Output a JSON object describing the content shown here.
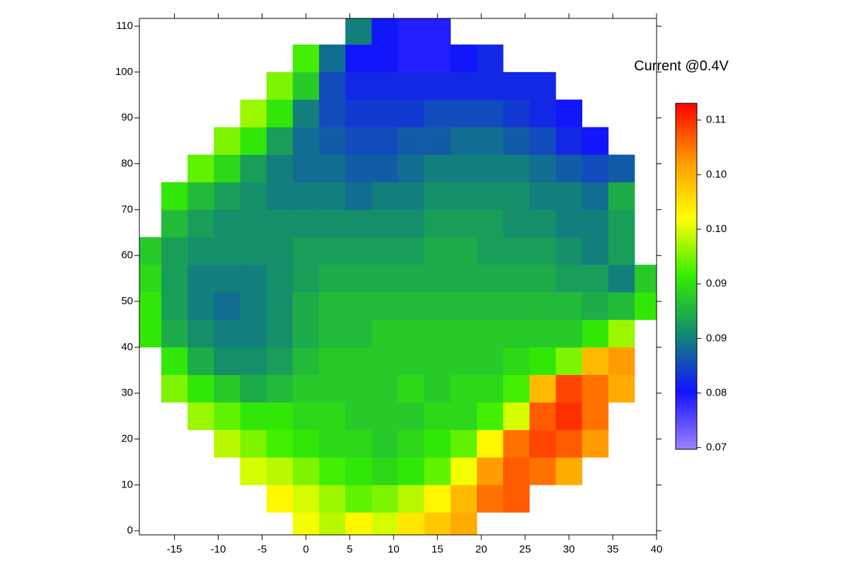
{
  "chart_data": {
    "type": "heatmap",
    "title": "Current @0.4V",
    "x": [
      -18,
      -15,
      -12,
      -9,
      -6,
      -3,
      0,
      3,
      6,
      9,
      12,
      15,
      18,
      21,
      24,
      27,
      30,
      33,
      36,
      39
    ],
    "y": [
      1,
      7,
      13,
      19,
      25,
      31,
      37,
      43,
      49,
      55,
      61,
      67,
      73,
      79,
      85,
      91,
      97,
      103,
      109
    ],
    "cell_size": [
      3,
      6
    ],
    "values": [
      [
        null,
        null,
        null,
        null,
        null,
        null,
        0.099,
        0.097,
        0.1,
        0.098,
        0.101,
        0.103,
        0.105,
        null,
        null,
        null,
        null,
        null,
        null,
        null
      ],
      [
        null,
        null,
        null,
        null,
        null,
        0.1,
        0.098,
        0.096,
        0.094,
        0.095,
        0.097,
        0.1,
        0.104,
        0.108,
        0.109,
        null,
        null,
        null,
        null,
        null
      ],
      [
        null,
        null,
        null,
        null,
        0.098,
        0.097,
        0.095,
        0.093,
        0.092,
        0.091,
        0.092,
        0.094,
        0.099,
        0.106,
        0.109,
        0.108,
        0.105,
        null,
        null,
        null
      ],
      [
        null,
        null,
        null,
        0.097,
        0.095,
        0.093,
        0.092,
        0.091,
        0.091,
        0.09,
        0.091,
        0.092,
        0.094,
        0.1,
        0.108,
        0.11,
        0.109,
        0.106,
        null,
        null
      ],
      [
        null,
        null,
        0.096,
        0.094,
        0.092,
        0.092,
        0.091,
        0.091,
        0.09,
        0.09,
        0.09,
        0.091,
        0.091,
        0.093,
        0.098,
        0.109,
        0.111,
        0.108,
        null,
        null
      ],
      [
        null,
        0.095,
        0.092,
        0.09,
        0.088,
        0.089,
        0.09,
        0.09,
        0.09,
        0.09,
        0.091,
        0.09,
        0.091,
        0.091,
        0.093,
        0.104,
        0.11,
        0.108,
        0.105,
        null
      ],
      [
        null,
        0.092,
        0.088,
        0.086,
        0.086,
        0.087,
        0.089,
        0.09,
        0.09,
        0.09,
        0.09,
        0.09,
        0.09,
        0.09,
        0.091,
        0.092,
        0.095,
        0.104,
        0.106,
        null
      ],
      [
        0.092,
        0.088,
        0.086,
        0.085,
        0.085,
        0.086,
        0.088,
        0.089,
        0.089,
        0.09,
        0.09,
        0.09,
        0.09,
        0.09,
        0.09,
        0.09,
        0.09,
        0.092,
        0.096,
        null
      ],
      [
        0.092,
        0.087,
        0.085,
        0.084,
        0.085,
        0.086,
        0.088,
        0.089,
        0.089,
        0.089,
        0.089,
        0.089,
        0.089,
        0.089,
        0.089,
        0.089,
        0.089,
        0.088,
        0.089,
        0.092
      ],
      [
        0.091,
        0.087,
        0.085,
        0.085,
        0.085,
        0.086,
        0.087,
        0.088,
        0.088,
        0.088,
        0.088,
        0.088,
        0.088,
        0.088,
        0.088,
        0.088,
        0.087,
        0.087,
        0.085,
        0.09
      ],
      [
        0.09,
        0.087,
        0.086,
        0.086,
        0.086,
        0.086,
        0.087,
        0.087,
        0.087,
        0.087,
        0.087,
        0.088,
        0.088,
        0.087,
        0.087,
        0.087,
        0.086,
        0.085,
        0.087,
        null
      ],
      [
        null,
        0.089,
        0.087,
        0.086,
        0.086,
        0.086,
        0.086,
        0.086,
        0.086,
        0.086,
        0.086,
        0.087,
        0.087,
        0.087,
        0.086,
        0.086,
        0.085,
        0.085,
        0.087,
        null
      ],
      [
        null,
        0.092,
        0.089,
        0.087,
        0.086,
        0.085,
        0.085,
        0.085,
        0.084,
        0.085,
        0.085,
        0.086,
        0.086,
        0.086,
        0.086,
        0.085,
        0.085,
        0.084,
        0.088,
        null
      ],
      [
        null,
        null,
        0.094,
        0.091,
        0.087,
        0.085,
        0.084,
        0.084,
        0.083,
        0.083,
        0.084,
        0.085,
        0.085,
        0.085,
        0.085,
        0.084,
        0.083,
        0.082,
        0.083,
        null
      ],
      [
        null,
        null,
        null,
        0.095,
        0.092,
        0.087,
        0.084,
        0.083,
        0.082,
        0.082,
        0.083,
        0.083,
        0.084,
        0.084,
        0.083,
        0.082,
        0.08,
        0.079,
        null,
        null
      ],
      [
        null,
        null,
        null,
        null,
        0.096,
        0.092,
        0.085,
        0.082,
        0.081,
        0.081,
        0.081,
        0.082,
        0.082,
        0.082,
        0.081,
        0.08,
        0.079,
        null,
        null,
        null
      ],
      [
        null,
        null,
        null,
        null,
        null,
        0.095,
        0.09,
        0.082,
        0.08,
        0.08,
        0.08,
        0.08,
        0.08,
        0.08,
        0.08,
        0.08,
        null,
        null,
        null,
        null
      ],
      [
        null,
        null,
        null,
        null,
        null,
        null,
        0.093,
        0.084,
        0.079,
        0.079,
        0.078,
        0.078,
        0.079,
        0.08,
        null,
        null,
        null,
        null,
        null,
        null
      ],
      [
        null,
        null,
        null,
        null,
        null,
        null,
        null,
        null,
        0.085,
        0.079,
        0.078,
        0.078,
        null,
        null,
        null,
        null,
        null,
        null,
        null,
        null
      ]
    ],
    "xlim": [
      -19,
      40
    ],
    "xticks": [
      -15,
      -10,
      -5,
      0,
      5,
      10,
      15,
      20,
      25,
      30,
      35,
      40
    ],
    "ylim": [
      -0.9,
      111.7
    ],
    "yticks": [
      0,
      10,
      20,
      30,
      40,
      50,
      60,
      70,
      80,
      90,
      100,
      110
    ],
    "zlim": [
      0.0719,
      0.1131
    ],
    "zticks": [
      {
        "value": 0.0721,
        "label": "0.07"
      },
      {
        "value": 0.0786,
        "label": "0.08"
      },
      {
        "value": 0.0851,
        "label": "0.09"
      },
      {
        "value": 0.0916,
        "label": "0.09"
      },
      {
        "value": 0.0981,
        "label": "0.10"
      },
      {
        "value": 0.1046,
        "label": "0.10"
      },
      {
        "value": 0.1111,
        "label": "0.11"
      }
    ],
    "colors": [
      "#9f80ff",
      "#1212ff",
      "#128a70",
      "#33ee00",
      "#ffff00",
      "#ff9900",
      "#ff0000"
    ]
  }
}
